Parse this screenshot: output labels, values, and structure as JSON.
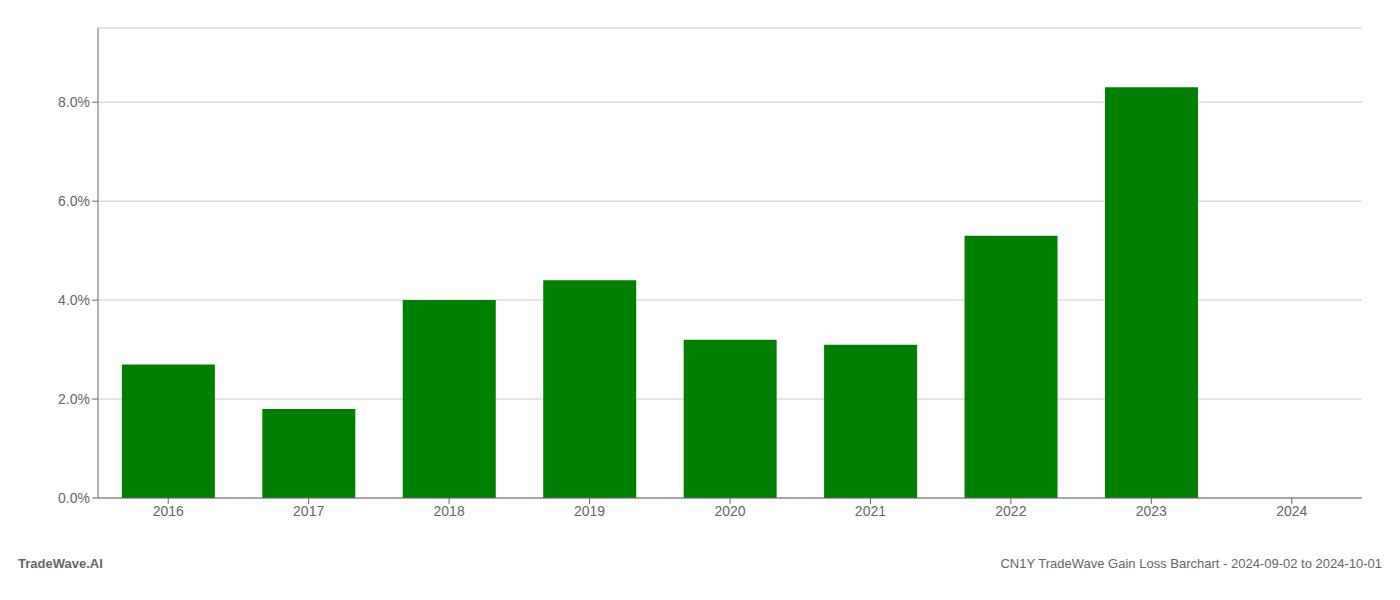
{
  "chart_data": {
    "type": "bar",
    "title": "CN1Y TradeWave Gain Loss Barchart - 2024-09-02 to 2024-10-01",
    "annotations": [
      "TradeWave.AI"
    ],
    "categories": [
      "2016",
      "2017",
      "2018",
      "2019",
      "2020",
      "2021",
      "2022",
      "2023",
      "2024"
    ],
    "values": [
      0.027,
      0.018,
      0.04,
      0.044,
      0.032,
      0.031,
      0.053,
      0.083,
      null
    ],
    "color": "#008000",
    "ylim": [
      0.0,
      0.095
    ],
    "yticks": [
      {
        "value": 0.0,
        "label": "0.0%"
      },
      {
        "value": 0.02,
        "label": "2.0%"
      },
      {
        "value": 0.04,
        "label": "4.0%"
      },
      {
        "value": 0.06,
        "label": "6.0%"
      },
      {
        "value": 0.08,
        "label": "8.0%"
      }
    ],
    "grid": true
  }
}
